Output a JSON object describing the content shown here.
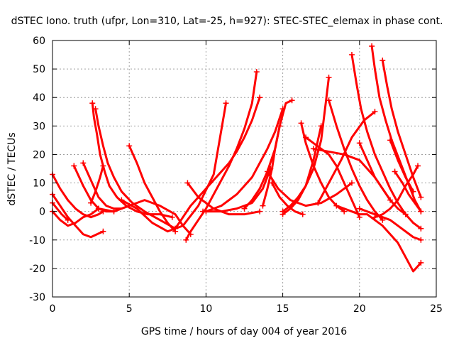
{
  "chart_data": {
    "type": "scatter",
    "title": "dSTEC Iono. truth (ufpr, Lon=310, Lat=-25, h=927): STEC-STEC_elemax in phase cont.",
    "xlabel": "GPS time / hours of day 004 of year 2016",
    "ylabel": "dSTEC  / TECUs",
    "xlim": [
      0,
      25
    ],
    "ylim": [
      -30,
      60
    ],
    "xticks": [
      0,
      5,
      10,
      15,
      20,
      25
    ],
    "yticks": [
      -30,
      -20,
      -10,
      0,
      10,
      20,
      30,
      40,
      50,
      60
    ],
    "grid": true,
    "marker": "+",
    "color": "#ff0000",
    "series": [
      {
        "x": [
          0,
          0.5,
          1,
          1.5,
          2,
          2.5,
          3,
          3.3
        ],
        "y": [
          13,
          8,
          4,
          1,
          -1,
          -2,
          -1,
          0
        ]
      },
      {
        "x": [
          0,
          0.5,
          1,
          1.5,
          2,
          2.5,
          3.3
        ],
        "y": [
          6,
          2,
          -2,
          -5,
          -8,
          -9,
          -7
        ]
      },
      {
        "x": [
          0,
          0.3,
          0.6,
          1
        ],
        "y": [
          3,
          1,
          -1,
          -3
        ]
      },
      {
        "x": [
          0,
          0.5,
          1,
          1.5,
          2,
          2.5,
          3
        ],
        "y": [
          0,
          -3,
          -5,
          -4,
          -2,
          -1,
          1
        ]
      },
      {
        "x": [
          1.4,
          2,
          2.5,
          3,
          3.5,
          4
        ],
        "y": [
          16,
          9,
          4,
          1,
          0,
          0
        ]
      },
      {
        "x": [
          2.6,
          2.7,
          2.9,
          3.1,
          3.4,
          3.7,
          4.2,
          4.8,
          5.5,
          6.2,
          7,
          7.8
        ],
        "y": [
          38,
          33,
          27,
          20,
          14,
          9,
          5,
          2,
          0,
          -1,
          -1,
          -2
        ]
      },
      {
        "x": [
          2.8,
          3,
          3.3,
          3.6,
          4,
          4.5,
          5.2,
          6,
          7,
          8
        ],
        "y": [
          36,
          30,
          23,
          17,
          12,
          7,
          3,
          0,
          -3,
          -6
        ]
      },
      {
        "x": [
          2,
          2.5,
          3,
          3.5,
          4,
          4.5,
          5
        ],
        "y": [
          17,
          11,
          5,
          2,
          1,
          1,
          2
        ]
      },
      {
        "x": [
          2.5,
          2.8,
          3.1,
          3.3
        ],
        "y": [
          3,
          7,
          12,
          16
        ]
      },
      {
        "x": [
          5,
          5.5,
          6,
          6.5,
          7,
          7.5,
          8
        ],
        "y": [
          23,
          17,
          10,
          5,
          0,
          -4,
          -7
        ]
      },
      {
        "x": [
          3,
          4,
          5,
          6,
          7,
          8,
          8.5,
          9
        ],
        "y": [
          1,
          0,
          2,
          4,
          2,
          -1,
          -5,
          -8
        ]
      },
      {
        "x": [
          4.5,
          5.5,
          6.5,
          7.5,
          8.5,
          9.5,
          10.5,
          11.3
        ],
        "y": [
          4,
          1,
          -4,
          -7,
          -5,
          2,
          13,
          38
        ]
      },
      {
        "x": [
          8.7,
          9,
          9.5,
          10,
          10.5,
          11,
          11.5,
          12,
          12.5,
          13,
          13.3
        ],
        "y": [
          -10,
          -7,
          -3,
          1,
          6,
          11,
          16,
          22,
          29,
          38,
          49
        ]
      },
      {
        "x": [
          8,
          8.5,
          9,
          9.5,
          10,
          10.5,
          11,
          11.5,
          12,
          12.5,
          13,
          13.5
        ],
        "y": [
          -6,
          -2,
          2,
          5,
          8,
          11,
          14,
          17,
          21,
          26,
          32,
          40
        ]
      },
      {
        "x": [
          8.8,
          9.5,
          10.5,
          11.5,
          12.5,
          13.5
        ],
        "y": [
          10,
          5,
          1,
          -1,
          -1,
          0
        ]
      },
      {
        "x": [
          10,
          10.5,
          11,
          11.5,
          12,
          12.5,
          13,
          13.5,
          14,
          14.5,
          15
        ],
        "y": [
          0,
          1,
          2,
          4,
          6,
          9,
          12,
          17,
          22,
          28,
          36
        ]
      },
      {
        "x": [
          9.8,
          11,
          12,
          13,
          13.7,
          14.2
        ],
        "y": [
          0,
          0,
          1,
          3,
          8,
          15
        ]
      },
      {
        "x": [
          12.5,
          13,
          13.5,
          14,
          14.5,
          14.8
        ],
        "y": [
          1,
          4,
          8,
          14,
          22,
          30
        ]
      },
      {
        "x": [
          13.7,
          14,
          14.3,
          14.5,
          14.8,
          15.2,
          15.6
        ],
        "y": [
          2,
          8,
          15,
          22,
          30,
          38,
          39
        ]
      },
      {
        "x": [
          14.3,
          14.8,
          15.3,
          15.8,
          16.3
        ],
        "y": [
          10,
          5,
          2,
          0,
          -1
        ]
      },
      {
        "x": [
          14,
          14.7,
          15.5,
          16.5,
          17.5,
          18.5,
          19.5
        ],
        "y": [
          14,
          8,
          4,
          2,
          3,
          6,
          10
        ]
      },
      {
        "x": [
          15,
          15.5,
          16,
          16.5,
          17,
          17.5,
          17.8,
          18
        ],
        "y": [
          0,
          2,
          5,
          9,
          15,
          25,
          38,
          47
        ]
      },
      {
        "x": [
          15,
          15.5,
          16,
          16.5,
          17,
          17.5
        ],
        "y": [
          -1,
          1,
          4,
          9,
          18,
          30
        ]
      },
      {
        "x": [
          16.2,
          16.5,
          17,
          17.5,
          18,
          18.5,
          19
        ],
        "y": [
          31,
          24,
          16,
          10,
          5,
          2,
          0
        ]
      },
      {
        "x": [
          16.5,
          17,
          17.5,
          18,
          18.5,
          19,
          19.5,
          20
        ],
        "y": [
          26,
          24,
          22,
          20,
          16,
          10,
          4,
          -2
        ]
      },
      {
        "x": [
          17,
          18,
          19,
          20,
          21,
          22
        ],
        "y": [
          22,
          21,
          20,
          18,
          12,
          4
        ]
      },
      {
        "x": [
          18,
          18.5,
          19,
          19.5,
          20,
          20.5,
          21,
          21.5
        ],
        "y": [
          39,
          30,
          22,
          15,
          9,
          4,
          0,
          -3
        ]
      },
      {
        "x": [
          17.3,
          18,
          18.8,
          19.5,
          20.3,
          21
        ],
        "y": [
          3,
          10,
          18,
          26,
          32,
          35
        ]
      },
      {
        "x": [
          19.5,
          19.8,
          20.1,
          20.5,
          21,
          21.5,
          22,
          22.5,
          23,
          23.5,
          24
        ],
        "y": [
          55,
          45,
          36,
          28,
          20,
          14,
          8,
          3,
          -1,
          -4,
          -6
        ]
      },
      {
        "x": [
          18.5,
          19,
          19.5,
          20,
          20.5,
          21,
          21.5,
          22,
          22.5,
          23,
          23.5,
          24
        ],
        "y": [
          2,
          1,
          0,
          -1,
          -1,
          -3,
          -5,
          -8,
          -11,
          -16,
          -21,
          -18
        ]
      },
      {
        "x": [
          20.8,
          21,
          21.3,
          21.7,
          22.1,
          22.6,
          23.1,
          23.6,
          24
        ],
        "y": [
          58,
          50,
          40,
          32,
          25,
          18,
          11,
          4,
          0
        ]
      },
      {
        "x": [
          21.5,
          21.8,
          22.1,
          22.5,
          23,
          23.5,
          24
        ],
        "y": [
          53,
          44,
          36,
          28,
          20,
          12,
          5
        ]
      },
      {
        "x": [
          20,
          20.5,
          21,
          21.5,
          22,
          22.5,
          23,
          23.5,
          24
        ],
        "y": [
          1,
          0,
          -1,
          -2,
          -3,
          -5,
          -7,
          -9,
          -10
        ]
      },
      {
        "x": [
          20,
          20.5,
          21,
          21.5,
          22,
          22.5,
          23
        ],
        "y": [
          24,
          18,
          12,
          8,
          4,
          1,
          -1
        ]
      },
      {
        "x": [
          21,
          21.5,
          22,
          22.5,
          23,
          23.5,
          23.8
        ],
        "y": [
          -2,
          -1,
          1,
          4,
          9,
          13,
          16
        ]
      },
      {
        "x": [
          22,
          22.5,
          23,
          23.5
        ],
        "y": [
          25,
          18,
          12,
          7
        ]
      },
      {
        "x": [
          22.3,
          22.8,
          23.2,
          23.6,
          24
        ],
        "y": [
          14,
          10,
          6,
          3,
          0
        ]
      }
    ]
  }
}
